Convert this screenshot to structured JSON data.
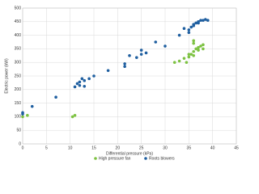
{
  "chart_data": {
    "type": "scatter",
    "xlabel": "Differential pressure (kPa)",
    "ylabel": "Electric power (kW)",
    "xlim": [
      0,
      45
    ],
    "xticks": [
      0,
      5,
      10,
      15,
      20,
      25,
      30,
      35,
      40,
      45
    ],
    "ylim": [
      0,
      500
    ],
    "yticks": [
      0,
      50,
      100,
      150,
      200,
      250,
      300,
      350,
      400,
      450,
      500
    ],
    "grid": true,
    "legend": "bottom",
    "series": [
      {
        "name": "High pressure fan",
        "color": "#7dc242",
        "x": [
          0,
          1,
          10.5,
          11,
          32,
          33,
          34,
          34.5,
          35,
          35,
          35.5,
          36,
          36,
          36,
          36,
          36.5,
          37,
          37,
          37.5,
          38,
          38
        ],
        "values": [
          100,
          105,
          100,
          105,
          300,
          305,
          315,
          300,
          320,
          330,
          330,
          325,
          340,
          370,
          380,
          350,
          355,
          345,
          360,
          365,
          350
        ]
      },
      {
        "name": "Roots blowers",
        "color": "#1f5fa0",
        "x": [
          0,
          0,
          2,
          7,
          11,
          11.5,
          12,
          12,
          12.5,
          13,
          13,
          14,
          15,
          18,
          21.5,
          21.5,
          22.5,
          24,
          25,
          25,
          26,
          28,
          30,
          33,
          34,
          35,
          35,
          35.5,
          36,
          36,
          36.5,
          37,
          37,
          37.5,
          38,
          38.5,
          39
        ],
        "values": [
          115,
          110,
          138,
          172,
          210,
          222,
          228,
          215,
          240,
          233,
          212,
          240,
          250,
          270,
          295,
          285,
          325,
          318,
          330,
          345,
          335,
          375,
          360,
          400,
          425,
          420,
          410,
          430,
          440,
          435,
          445,
          450,
          445,
          455,
          455,
          458,
          455
        ]
      }
    ]
  }
}
